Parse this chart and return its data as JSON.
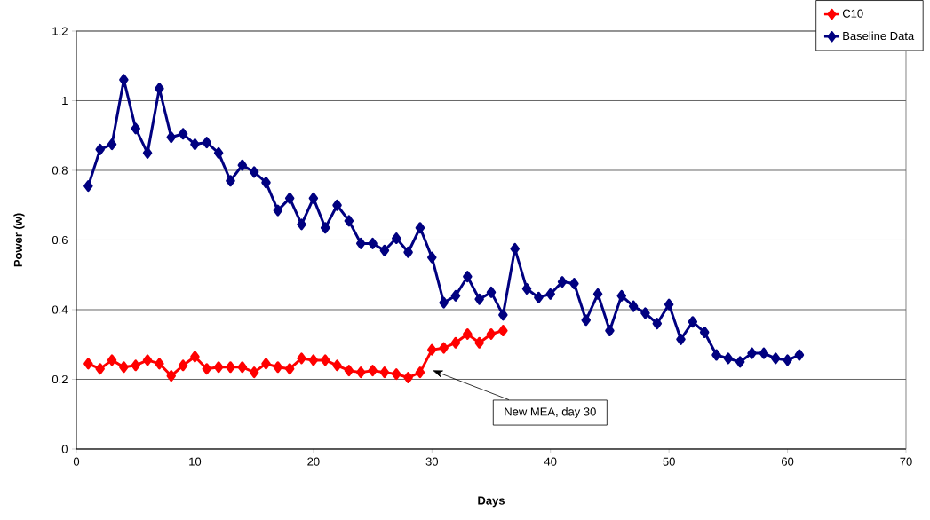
{
  "chart_data": {
    "type": "line",
    "xlabel": "Days",
    "ylabel": "Power (w)",
    "xlim": [
      0,
      70
    ],
    "xticks": [
      0,
      10,
      20,
      30,
      40,
      50,
      60,
      70
    ],
    "ylim": [
      0,
      1.2
    ],
    "yticks": [
      0,
      0.2,
      0.4,
      0.6,
      0.8,
      1,
      1.2
    ],
    "grid": "y",
    "legend": "top right",
    "marker": "diamond",
    "line_style": "solid",
    "series": [
      {
        "name": "C10",
        "color": "#ff0000",
        "x": [
          1,
          2,
          3,
          4,
          5,
          6,
          7,
          8,
          9,
          10,
          11,
          12,
          13,
          14,
          15,
          16,
          17,
          18,
          19,
          20,
          21,
          22,
          23,
          24,
          25,
          26,
          27,
          28,
          29,
          30,
          31,
          32,
          33,
          34,
          35,
          36
        ],
        "values": [
          0.245,
          0.23,
          0.255,
          0.235,
          0.24,
          0.255,
          0.245,
          0.21,
          0.24,
          0.265,
          0.23,
          0.235,
          0.235,
          0.235,
          0.22,
          0.245,
          0.235,
          0.23,
          0.26,
          0.255,
          0.255,
          0.24,
          0.225,
          0.22,
          0.225,
          0.22,
          0.215,
          0.205,
          0.22,
          0.285,
          0.29,
          0.305,
          0.33,
          0.305,
          0.33,
          0.34
        ]
      },
      {
        "name": "Baseline Data",
        "color": "#000080",
        "x": [
          1,
          2,
          3,
          4,
          5,
          6,
          7,
          8,
          9,
          10,
          11,
          12,
          13,
          14,
          15,
          16,
          17,
          18,
          19,
          20,
          21,
          22,
          23,
          24,
          25,
          26,
          27,
          28,
          29,
          30,
          31,
          32,
          33,
          34,
          35,
          36,
          37,
          38,
          39,
          40,
          41,
          42,
          43,
          44,
          45,
          46,
          47,
          48,
          49,
          50,
          51,
          52,
          53,
          54,
          55,
          56,
          57,
          58,
          59,
          60,
          61
        ],
        "values": [
          0.755,
          0.86,
          0.875,
          1.06,
          0.92,
          0.85,
          1.035,
          0.895,
          0.905,
          0.875,
          0.88,
          0.85,
          0.77,
          0.815,
          0.795,
          0.765,
          0.685,
          0.72,
          0.645,
          0.72,
          0.635,
          0.7,
          0.655,
          0.59,
          0.59,
          0.57,
          0.605,
          0.565,
          0.635,
          0.55,
          0.42,
          0.44,
          0.495,
          0.43,
          0.45,
          0.385,
          0.575,
          0.46,
          0.435,
          0.445,
          0.48,
          0.475,
          0.37,
          0.445,
          0.34,
          0.44,
          0.41,
          0.39,
          0.36,
          0.415,
          0.315,
          0.365,
          0.335,
          0.27,
          0.26,
          0.25,
          0.275,
          0.275,
          0.26,
          0.255,
          0.27
        ]
      }
    ],
    "annotations": [
      "New MEA, day 30"
    ]
  }
}
